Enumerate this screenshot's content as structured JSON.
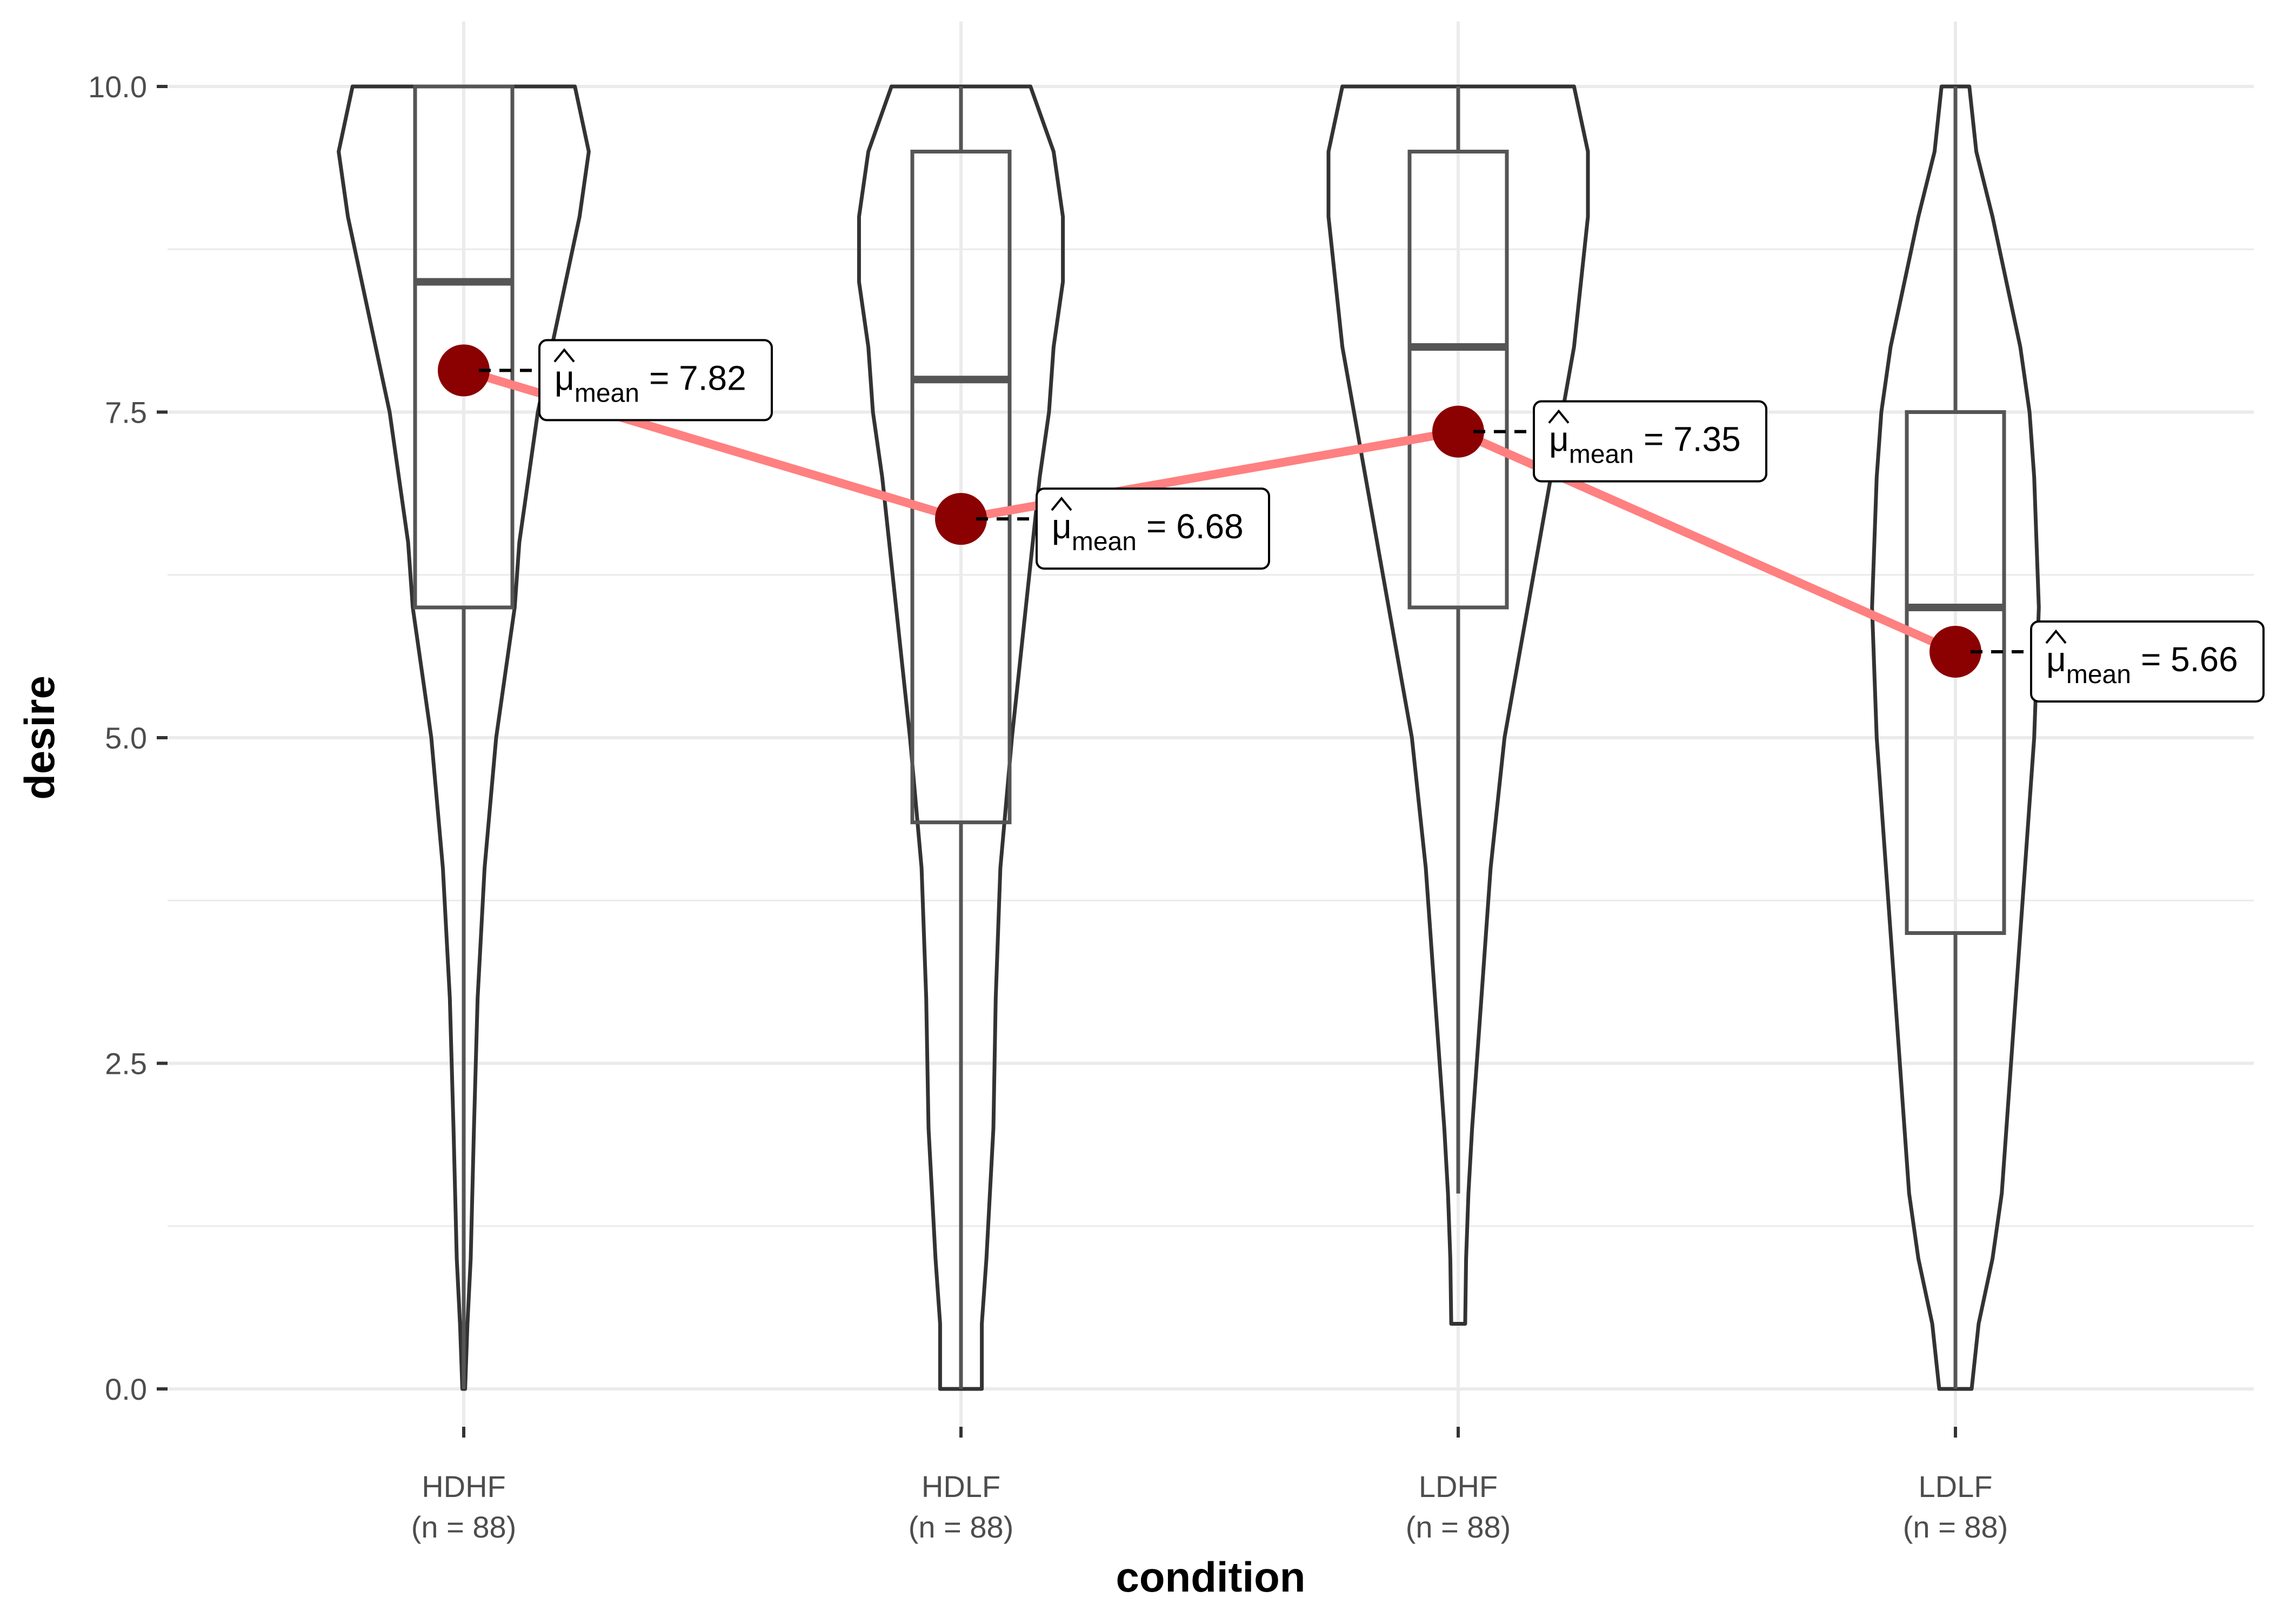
{
  "chart_data": {
    "type": "violin",
    "xlabel": "condition",
    "ylabel": "desire",
    "ylim": [
      0,
      10
    ],
    "y_ticks": [
      "0.0",
      "2.5",
      "5.0",
      "7.5",
      "10.0"
    ],
    "grid": true,
    "categories": [
      {
        "name": "HDHF",
        "n_label": "(n = 88)",
        "box": {
          "lower_whisker": 0,
          "q1": 6.0,
          "median": 8.5,
          "q3": 10.0,
          "upper_whisker": 10.0
        },
        "mean": 7.82,
        "mean_label": "= 7.82",
        "violin_range": [
          0,
          10
        ],
        "violin_profile": [
          [
            0,
            0.003
          ],
          [
            0.5,
            0.008
          ],
          [
            1,
            0.015
          ],
          [
            2,
            0.022
          ],
          [
            3,
            0.03
          ],
          [
            4,
            0.045
          ],
          [
            5,
            0.07
          ],
          [
            5.5,
            0.09
          ],
          [
            6,
            0.11
          ],
          [
            6.5,
            0.12
          ],
          [
            7,
            0.14
          ],
          [
            7.5,
            0.16
          ],
          [
            8,
            0.19
          ],
          [
            8.5,
            0.22
          ],
          [
            9,
            0.25
          ],
          [
            9.5,
            0.27
          ],
          [
            10,
            0.24
          ]
        ]
      },
      {
        "name": "HDLF",
        "n_label": "(n = 88)",
        "box": {
          "lower_whisker": 0,
          "q1": 4.35,
          "median": 7.75,
          "q3": 9.5,
          "upper_whisker": 10.0
        },
        "mean": 6.68,
        "mean_label": "= 6.68",
        "violin_range": [
          0,
          10
        ],
        "violin_profile": [
          [
            0,
            0.045
          ],
          [
            0.5,
            0.045
          ],
          [
            1,
            0.055
          ],
          [
            2,
            0.07
          ],
          [
            3,
            0.075
          ],
          [
            4,
            0.085
          ],
          [
            5,
            0.11
          ],
          [
            6,
            0.14
          ],
          [
            7,
            0.17
          ],
          [
            7.5,
            0.19
          ],
          [
            8,
            0.2
          ],
          [
            8.5,
            0.22
          ],
          [
            9,
            0.22
          ],
          [
            9.5,
            0.2
          ],
          [
            10,
            0.15
          ]
        ]
      },
      {
        "name": "LDHF",
        "n_label": "(n = 88)",
        "box": {
          "lower_whisker": 1.5,
          "q1": 6.0,
          "median": 8.0,
          "q3": 9.5,
          "upper_whisker": 10.0
        },
        "mean": 7.35,
        "mean_label": "= 7.35",
        "violin_range": [
          0.5,
          10
        ],
        "violin_profile": [
          [
            0.5,
            0.015
          ],
          [
            1,
            0.017
          ],
          [
            1.5,
            0.022
          ],
          [
            2,
            0.03
          ],
          [
            3,
            0.05
          ],
          [
            4,
            0.07
          ],
          [
            5,
            0.1
          ],
          [
            6,
            0.15
          ],
          [
            7,
            0.2
          ],
          [
            8,
            0.25
          ],
          [
            9,
            0.28
          ],
          [
            9.5,
            0.28
          ],
          [
            10,
            0.25
          ]
        ]
      },
      {
        "name": "LDLF",
        "n_label": "(n = 88)",
        "box": {
          "lower_whisker": 0,
          "q1": 3.5,
          "median": 6.0,
          "q3": 7.5,
          "upper_whisker": 10.0
        },
        "mean": 5.66,
        "mean_label": "= 5.66",
        "violin_range": [
          0,
          10
        ],
        "violin_profile": [
          [
            0,
            0.035
          ],
          [
            0.5,
            0.05
          ],
          [
            1,
            0.08
          ],
          [
            1.5,
            0.1
          ],
          [
            2,
            0.11
          ],
          [
            3,
            0.13
          ],
          [
            4,
            0.15
          ],
          [
            5,
            0.17
          ],
          [
            6,
            0.18
          ],
          [
            7,
            0.17
          ],
          [
            7.5,
            0.16
          ],
          [
            8,
            0.14
          ],
          [
            8.5,
            0.11
          ],
          [
            9,
            0.08
          ],
          [
            9.5,
            0.045
          ],
          [
            10,
            0.03
          ]
        ]
      }
    ],
    "annotation_symbol": "μ",
    "annotation_subscript": "mean",
    "colors": {
      "violin_outline": "#333333",
      "box_outline": "#555555",
      "mean_point": "#8B0000",
      "mean_line": "#FF8080",
      "grid": "#ebebeb",
      "tick_label": "#4d4d4d"
    }
  }
}
